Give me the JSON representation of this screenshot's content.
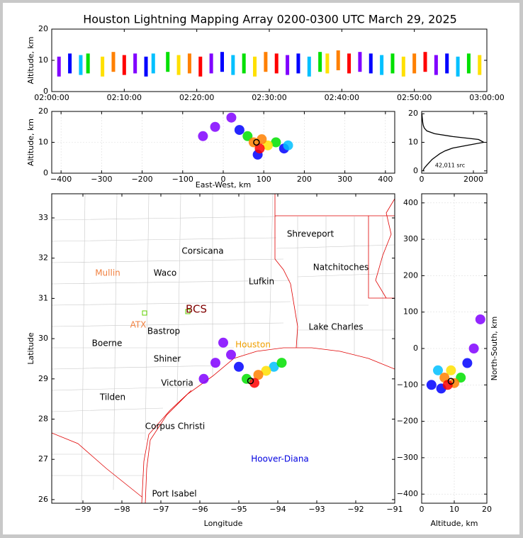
{
  "chart_data": [
    {
      "type": "scatter",
      "title": "Houston Lightning Mapping Array 0200-0300 UTC March 29, 2025",
      "ylabel": "Altitude, km",
      "xlim": [
        0,
        60
      ],
      "xticks": [
        {
          "value": 0,
          "label": "02:00:00"
        },
        {
          "value": 10,
          "label": "02:10:00"
        },
        {
          "value": 20,
          "label": "02:20:00"
        },
        {
          "value": 30,
          "label": "02:30:00"
        },
        {
          "value": 40,
          "label": "02:40:00"
        },
        {
          "value": 50,
          "label": "02:50:00"
        },
        {
          "value": 60,
          "label": "03:00:00"
        }
      ],
      "ylim": [
        0,
        20
      ],
      "yticks": [
        0,
        10,
        20
      ],
      "palette": [
        "#8000ff",
        "#0000ff",
        "#00c0ff",
        "#00e000",
        "#ffe000",
        "#ff8000",
        "#ff0000"
      ],
      "x": [
        1,
        2.5,
        4,
        5,
        7,
        8.5,
        10,
        11.5,
        13,
        14,
        16,
        17.5,
        19,
        20.5,
        22,
        23.5,
        25,
        26.5,
        28,
        29.5,
        31,
        32.5,
        34,
        35.5,
        37,
        38,
        39.5,
        41,
        42.5,
        44,
        45.5,
        47,
        48.5,
        50,
        51.5,
        53,
        54.5,
        56,
        57.5,
        59
      ],
      "y": [
        8,
        9,
        8.5,
        9,
        8,
        9.5,
        8.5,
        9,
        8,
        9,
        9.5,
        8.5,
        9,
        8,
        9,
        9.5,
        8.5,
        9,
        8,
        9.5,
        9,
        8.5,
        9,
        8,
        9.5,
        9,
        10,
        9,
        9.5,
        9,
        8.5,
        9,
        8,
        9,
        9.5,
        8.5,
        9,
        8,
        9,
        8.5
      ]
    },
    {
      "type": "scatter",
      "xlabel": "East-West, km",
      "ylabel": "Altitude, km",
      "grid": true,
      "xlim": [
        -423,
        423
      ],
      "xticks": [
        {
          "value": -400,
          "label": "−400"
        },
        {
          "value": -300,
          "label": "−300"
        },
        {
          "value": -200,
          "label": "−200"
        },
        {
          "value": -100,
          "label": "−100"
        },
        0,
        100,
        200,
        300,
        400
      ],
      "ylim": [
        0,
        20
      ],
      "yticks": [
        0,
        10,
        20
      ],
      "x": [
        -50,
        -20,
        20,
        40,
        150,
        160,
        130,
        60,
        110,
        75,
        95,
        85,
        90,
        82
      ],
      "y": [
        12,
        15,
        18,
        14,
        8,
        9,
        10,
        12,
        9,
        10,
        11,
        6,
        8,
        10
      ],
      "colors": [
        "#8000ff",
        "#8000ff",
        "#8000ff",
        "#0000ff",
        "#0000ff",
        "#00c0ff",
        "#00e000",
        "#00e000",
        "#ffe000",
        "#ff8000",
        "#ff8000",
        "#0000ff",
        "#ff0000",
        "#000000"
      ]
    },
    {
      "type": "line",
      "annotation": "42,011 src",
      "color": "#000000",
      "xlim": [
        0,
        2520
      ],
      "xticks": [
        0,
        2000
      ],
      "ylim": [
        -0.8,
        20.8
      ],
      "yticks": [
        0,
        10,
        20
      ],
      "y": [
        0,
        1,
        2,
        3,
        4,
        5,
        6,
        7,
        8,
        9,
        10,
        11,
        12,
        13,
        14,
        15,
        16,
        17,
        18,
        19,
        20
      ],
      "values": [
        50,
        100,
        200,
        300,
        400,
        550,
        700,
        900,
        1200,
        1800,
        2400,
        2200,
        1200,
        500,
        200,
        100,
        60,
        40,
        30,
        20,
        10
      ]
    },
    {
      "type": "scatter",
      "xlabel": "Longitude",
      "ylabel": "Latitude",
      "xlim": [
        -99.8,
        -91
      ],
      "xticks": [
        {
          "value": -99,
          "label": "−99"
        },
        {
          "value": -98,
          "label": "−98"
        },
        {
          "value": -97,
          "label": "−97"
        },
        {
          "value": -96,
          "label": "−96"
        },
        {
          "value": -95,
          "label": "−95"
        },
        {
          "value": -94,
          "label": "−94"
        },
        {
          "value": -93,
          "label": "−93"
        },
        {
          "value": -92,
          "label": "−92"
        },
        {
          "value": -91,
          "label": "−91"
        }
      ],
      "ylim": [
        25.91,
        33.6
      ],
      "yticks": [
        26,
        27,
        28,
        29,
        30,
        31,
        32,
        33
      ],
      "x": [
        -95.9,
        -95.6,
        -95.4,
        -95.2,
        -95.0,
        -94.1,
        -93.9,
        -94.3,
        -94.5,
        -94.8,
        -94.6,
        -94.7
      ],
      "y": [
        29.0,
        29.4,
        29.9,
        29.6,
        29.3,
        29.3,
        29.4,
        29.2,
        29.1,
        29.0,
        28.9,
        28.95
      ],
      "colors": [
        "#8000ff",
        "#8000ff",
        "#8000ff",
        "#8000ff",
        "#0000ff",
        "#00c0ff",
        "#00e000",
        "#ffe000",
        "#ff8000",
        "#00e000",
        "#ff0000",
        "#000000"
      ],
      "places": [
        {
          "name": "Shreveport",
          "color": "#000000"
        },
        {
          "name": "Corsicana",
          "color": "#000000"
        },
        {
          "name": "Natchitoches",
          "color": "#000000"
        },
        {
          "name": "Mullin",
          "color": "#f08040"
        },
        {
          "name": "Waco",
          "color": "#000000"
        },
        {
          "name": "Lufkin",
          "color": "#000000"
        },
        {
          "name": "BCS",
          "color": "#800000"
        },
        {
          "name": "ATX",
          "color": "#f08040"
        },
        {
          "name": "Bastrop",
          "color": "#000000"
        },
        {
          "name": "Lake Charles",
          "color": "#000000"
        },
        {
          "name": "Boerne",
          "color": "#000000"
        },
        {
          "name": "Houston",
          "color": "#f0a000"
        },
        {
          "name": "Shiner",
          "color": "#000000"
        },
        {
          "name": "Victoria",
          "color": "#000000"
        },
        {
          "name": "Tilden",
          "color": "#000000"
        },
        {
          "name": "Corpus Christi",
          "color": "#000000"
        },
        {
          "name": "Hoover-Diana",
          "color": "#0000e0"
        },
        {
          "name": "Port Isabel",
          "color": "#000000"
        }
      ]
    },
    {
      "type": "scatter",
      "xlabel": "Altitude, km",
      "ylabel": "North-South, km",
      "grid": true,
      "xlim": [
        0,
        20
      ],
      "xticks": [
        0,
        10,
        20
      ],
      "ylim": [
        -425,
        425
      ],
      "yticks": [
        {
          "value": -400,
          "label": "−400"
        },
        {
          "value": -300,
          "label": "−300"
        },
        {
          "value": -200,
          "label": "−200"
        },
        {
          "value": -100,
          "label": "−100"
        },
        0,
        100,
        200,
        300,
        400
      ],
      "x": [
        18,
        16,
        14,
        3,
        5,
        6,
        12,
        9,
        7,
        10,
        8,
        9
      ],
      "y": [
        80,
        0,
        -40,
        -100,
        -60,
        -110,
        -80,
        -60,
        -80,
        -95,
        -100,
        -90
      ],
      "colors": [
        "#8000ff",
        "#8000ff",
        "#0000ff",
        "#0000ff",
        "#00c0ff",
        "#0000ff",
        "#00e000",
        "#ffe000",
        "#ff8000",
        "#ff8000",
        "#ff0000",
        "#000000"
      ]
    }
  ]
}
